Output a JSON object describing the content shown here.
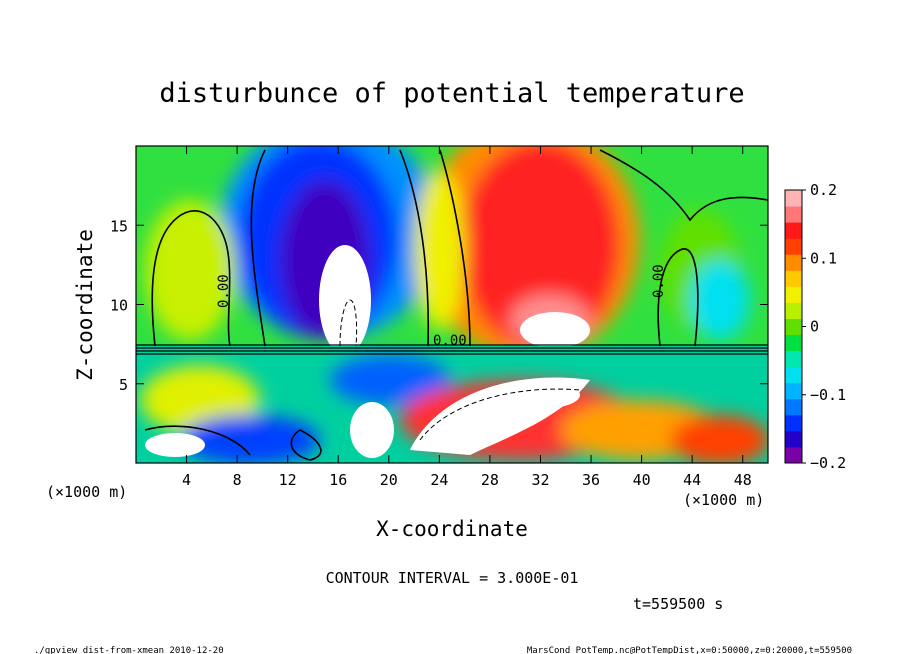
{
  "chart_data": {
    "type": "heatmap",
    "title": "disturbunce of potential temperature",
    "xlabel": "X-coordinate",
    "ylabel": "Z-coordinate",
    "x_unit_left": "(×1000 m)",
    "x_unit_right": "(×1000 m)",
    "xlim": [
      0,
      50
    ],
    "ylim": [
      0,
      20
    ],
    "x_ticks": [
      4,
      8,
      12,
      16,
      20,
      24,
      28,
      32,
      36,
      40,
      44,
      48
    ],
    "y_ticks": [
      5,
      10,
      15
    ],
    "colorbar": {
      "range": [
        -0.2,
        0.2
      ],
      "tick_labels": [
        "0.2",
        "0.1",
        "0",
        "−0.1",
        "−0.2"
      ],
      "tick_values": [
        0.2,
        0.1,
        0,
        -0.1,
        -0.2
      ],
      "colors": [
        "#7a00a8",
        "#2400c8",
        "#0030ff",
        "#0078ff",
        "#00b4ff",
        "#00e0f0",
        "#00e8b0",
        "#00e040",
        "#60e000",
        "#b8f000",
        "#f0f000",
        "#ffc800",
        "#ff8c00",
        "#ff4000",
        "#ff1818",
        "#ff7878",
        "#ffb4b4"
      ]
    },
    "zero_contour_label": "0.00",
    "contour_interval_text": "CONTOUR INTERVAL = 3.000E-01",
    "time_text": "t=559500 s"
  },
  "footer": {
    "left": "./gpview_dist-from-xmean  2010-12-20",
    "right": "MarsCond_PotTemp.nc@PotTempDist,x=0:50000,z=0:20000,t=559500"
  }
}
